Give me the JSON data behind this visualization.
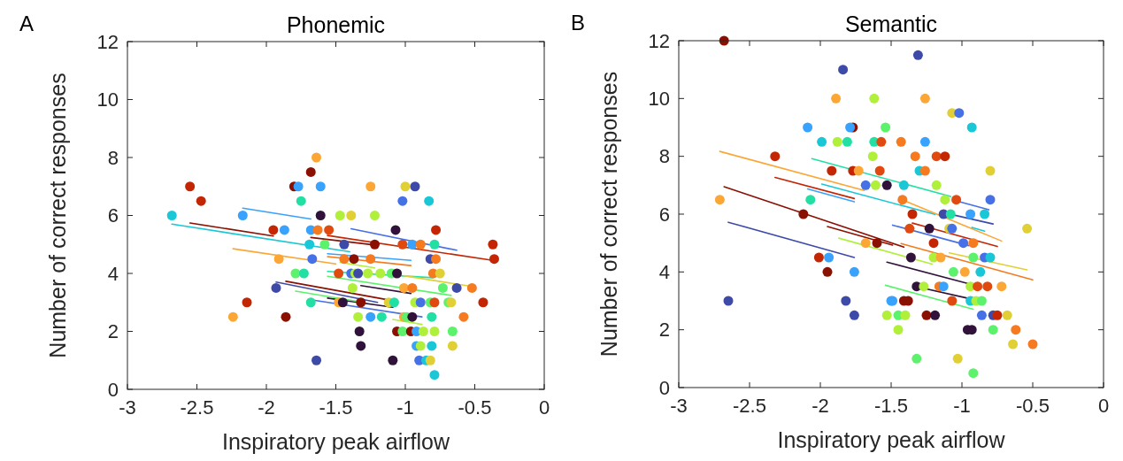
{
  "chart_data": [
    {
      "type": "scatter",
      "title": "Phonemic",
      "xlabel": "Inspiratory peak airflow",
      "ylabel": "Number of correct responses",
      "annotations": [
        "A"
      ],
      "xlim": [
        -3,
        0
      ],
      "xticks": [
        -3,
        -2.5,
        -2,
        -1.5,
        -1,
        -0.5,
        0
      ],
      "ylim": [
        0,
        12
      ],
      "yticks": [
        0,
        2,
        4,
        6,
        8,
        10,
        12
      ],
      "series": [
        {
          "marker": "circle",
          "x": [
            -1.64,
            -1.68,
            -2.55,
            -1.8,
            -1.77,
            -1.61,
            -2.47,
            -1.75,
            -2.68,
            -2.17,
            -1.61,
            -1.95,
            -1.87,
            -1.68,
            -1.63,
            -1.55,
            -1.69,
            -1.58,
            -1.91,
            -1.67,
            -1.79,
            -1.73,
            -1.93,
            -2.14,
            -1.68,
            -2.24,
            -1.86,
            -1.64,
            -1.25,
            -1.0,
            -0.93,
            -1.02,
            -0.83,
            -1.47,
            -1.39,
            -1.22,
            -1.07,
            -0.78,
            -1.44,
            -1.22,
            -1.02,
            -0.95,
            -0.89,
            -0.79,
            -0.37,
            -1.44,
            -1.37,
            -1.25,
            -0.82,
            -0.78,
            -0.36,
            -1.48,
            -1.39,
            -1.36,
            -1.34,
            -1.27,
            -1.18,
            -1.1,
            -1.06,
            -0.8,
            -0.75,
            -1.38,
            -1.01,
            -0.95,
            -0.73,
            -0.63,
            -0.52,
            -1.48,
            -1.45,
            -1.32,
            -1.12,
            -1.08,
            -0.93,
            -0.89,
            -0.82,
            -0.79,
            -0.69,
            -0.67,
            -0.44,
            -1.34,
            -1.25,
            -1.17,
            -1.01,
            -0.99,
            -0.95,
            -0.81,
            -0.58,
            -1.33,
            -1.06,
            -1.02,
            -0.96,
            -0.92,
            -0.87,
            -0.79,
            -0.66,
            -1.32,
            -0.92,
            -0.89,
            -0.81,
            -0.66,
            -1.09,
            -0.9,
            -0.85,
            -0.82,
            -0.79
          ],
          "values": [
            8,
            7.5,
            7,
            7,
            7,
            7,
            6.5,
            6.5,
            6,
            6,
            6,
            5.5,
            5.5,
            5.5,
            5.5,
            5.5,
            5,
            5,
            4.5,
            4.5,
            4,
            4,
            3.5,
            3,
            3,
            2.5,
            2.5,
            1,
            7,
            7,
            7,
            6.5,
            6.5,
            6,
            6,
            6,
            5.5,
            5.5,
            5,
            5,
            5,
            5,
            5,
            5,
            5,
            4.5,
            4.5,
            4.5,
            4.5,
            4.5,
            4.5,
            4,
            4,
            4,
            4,
            4,
            4,
            4,
            4,
            4,
            4,
            3.5,
            3.5,
            3.5,
            3.5,
            3.5,
            3.5,
            3,
            3,
            3,
            3,
            3,
            3,
            3,
            3,
            3,
            3,
            3,
            3,
            2.5,
            2.5,
            2.5,
            2.5,
            2.5,
            2.5,
            2.5,
            2.5,
            2,
            2,
            2,
            2,
            2,
            2,
            2,
            2,
            1.5,
            1.5,
            1.5,
            1.5,
            1.5,
            1,
            1,
            1,
            1,
            0.5
          ],
          "colors": [
            "#fca635",
            "#8a1002",
            "#c42503",
            "#8a1002",
            "#39a2fc",
            "#39a2fc",
            "#c42503",
            "#22e0a4",
            "#1ac7d6",
            "#39a2fc",
            "#30123b",
            "#c42503",
            "#39a2fc",
            "#39a2fc",
            "#f57a20",
            "#e04a10",
            "#1ac7d6",
            "#5cf26c",
            "#fca635",
            "#4570e6",
            "#5cf26c",
            "#22e0a4",
            "#3e4aa8",
            "#c42503",
            "#22e0a4",
            "#fca635",
            "#8a1002",
            "#3e4aa8",
            "#fca635",
            "#e0d035",
            "#3e4aa8",
            "#4570e6",
            "#1ac7d6",
            "#b0f03a",
            "#e0d035",
            "#b0f03a",
            "#30123b",
            "#c42503",
            "#3e4aa8",
            "#8a1002",
            "#e04a10",
            "#39a2fc",
            "#f57a20",
            "#22e0a4",
            "#c42503",
            "#f57a20",
            "#8a1002",
            "#f57a20",
            "#3e4aa8",
            "#f57a20",
            "#c42503",
            "#e04a10",
            "#4570e6",
            "#b0f03a",
            "#3e4aa8",
            "#b0f03a",
            "#b0f03a",
            "#5cf26c",
            "#30123b",
            "#f57a20",
            "#e0d035",
            "#b0f03a",
            "#fca635",
            "#f57a20",
            "#5cf26c",
            "#3e4aa8",
            "#f57a20",
            "#fca635",
            "#30123b",
            "#8a1002",
            "#e0d035",
            "#22e0a4",
            "#b0f03a",
            "#4570e6",
            "#5cf26c",
            "#e04a10",
            "#5cf26c",
            "#e0d035",
            "#c42503",
            "#b0f03a",
            "#39a2fc",
            "#22e0a4",
            "#fca635",
            "#5cf26c",
            "#30123b",
            "#22e0a4",
            "#f57a20",
            "#30123b",
            "#8a1002",
            "#5cf26c",
            "#8a1002",
            "#39a2fc",
            "#b0f03a",
            "#b0f03a",
            "#5cf26c",
            "#30123b",
            "#39a2fc",
            "#b0f03a",
            "#1ac7d6",
            "#e0d035",
            "#30123b",
            "#4570e6",
            "#1ac7d6",
            "#e0d035",
            "#1ac7d6"
          ]
        },
        {
          "type": "line",
          "color": "#1ac7d6",
          "x": [
            -2.68,
            -1.4
          ],
          "values": [
            5.7,
            4.75
          ]
        },
        {
          "type": "line",
          "color": "#8a1002",
          "x": [
            -2.55,
            -1.95
          ],
          "values": [
            5.74,
            5.29
          ]
        },
        {
          "type": "line",
          "color": "#39a2fc",
          "x": [
            -2.17,
            -1.68
          ],
          "values": [
            6.25,
            5.88
          ]
        },
        {
          "type": "line",
          "color": "#fca635",
          "x": [
            -2.24,
            -1.5
          ],
          "values": [
            4.85,
            4.33
          ]
        },
        {
          "type": "line",
          "color": "#c42503",
          "x": [
            -1.56,
            -0.37
          ],
          "values": [
            5.31,
            4.45
          ]
        },
        {
          "type": "line",
          "color": "#4570e6",
          "x": [
            -1.39,
            -0.63
          ],
          "values": [
            5.54,
            4.8
          ]
        },
        {
          "type": "line",
          "color": "#8a1002",
          "x": [
            -1.68,
            -1.22
          ],
          "values": [
            5.24,
            4.98
          ]
        },
        {
          "type": "line",
          "color": "#39a2fc",
          "x": [
            -1.56,
            -0.96
          ],
          "values": [
            4.68,
            4.45
          ]
        },
        {
          "type": "line",
          "color": "#f57a20",
          "x": [
            -1.56,
            -0.96
          ],
          "values": [
            4.58,
            4.27
          ]
        },
        {
          "type": "line",
          "color": "#b0f03a",
          "x": [
            -1.47,
            -1.22
          ],
          "values": [
            4.38,
            4.19
          ]
        },
        {
          "type": "line",
          "color": "#22e0a4",
          "x": [
            -1.56,
            -0.8
          ],
          "values": [
            4.07,
            3.85
          ]
        },
        {
          "type": "line",
          "color": "#e0d035",
          "x": [
            -1.01,
            -0.51
          ],
          "values": [
            3.92,
            3.54
          ]
        },
        {
          "type": "line",
          "color": "#5cf26c",
          "x": [
            -1.56,
            -0.67
          ],
          "values": [
            3.9,
            3.24
          ]
        },
        {
          "type": "line",
          "color": "#30123b",
          "x": [
            -1.32,
            -0.96
          ],
          "values": [
            3.58,
            3.31
          ]
        },
        {
          "type": "line",
          "color": "#3e4aa8",
          "x": [
            -1.93,
            -1.2
          ],
          "values": [
            3.7,
            3.0
          ]
        },
        {
          "type": "line",
          "color": "#30123b",
          "x": [
            -1.56,
            -1.09
          ],
          "values": [
            3.15,
            2.83
          ]
        },
        {
          "type": "line",
          "color": "#b0f03a",
          "x": [
            -1.09,
            -0.88
          ],
          "values": [
            2.41,
            2.24
          ]
        },
        {
          "type": "line",
          "color": "#4570e6",
          "x": [
            -1.65,
            -0.88
          ],
          "values": [
            3.07,
            2.5
          ]
        },
        {
          "type": "line",
          "color": "#8a1002",
          "x": [
            -1.86,
            -1.08
          ],
          "values": [
            3.73,
            3.05
          ]
        },
        {
          "type": "line",
          "color": "#5cf26c",
          "x": [
            -1.79,
            -1.3
          ],
          "values": [
            3.39,
            3.0
          ]
        }
      ]
    },
    {
      "type": "scatter",
      "title": "Semantic",
      "xlabel": "Inspiratory peak airflow",
      "ylabel": "Number of correct responses",
      "annotations": [
        "B"
      ],
      "xlim": [
        -3,
        0
      ],
      "xticks": [
        -3,
        -2.5,
        -2,
        -1.5,
        -1,
        -0.5,
        0
      ],
      "ylim": [
        0,
        12
      ],
      "yticks": [
        0,
        2,
        4,
        6,
        8,
        10,
        12
      ],
      "series": [
        {
          "marker": "circle",
          "x": [
            -2.68,
            -1.84,
            -1.89,
            -1.62,
            -2.09,
            -1.77,
            -1.79,
            -1.54,
            -1.99,
            -1.88,
            -1.81,
            -1.62,
            -1.57,
            -2.32,
            -1.63,
            -1.92,
            -1.77,
            -1.73,
            -1.58,
            -1.68,
            -1.61,
            -1.53,
            -2.71,
            -2.07,
            -2.12,
            -1.68,
            -1.6,
            -2.01,
            -1.94,
            -1.95,
            -1.76,
            -2.65,
            -1.82,
            -1.5,
            -1.76,
            -1.53,
            -1.31,
            -1.26,
            -1.07,
            -1.02,
            -0.93,
            -1.43,
            -1.26,
            -1.33,
            -1.18,
            -1.12,
            -1.3,
            -1.26,
            -0.8,
            -1.41,
            -1.18,
            -1.42,
            -1.12,
            -1.04,
            -0.8,
            -1.35,
            -1.13,
            -1.08,
            -0.94,
            -0.84,
            -1.37,
            -1.23,
            -1.09,
            -1.07,
            -0.54,
            -1.2,
            -0.99,
            -0.92,
            -1.36,
            -1.2,
            -1.15,
            -0.92,
            -0.84,
            -0.8,
            -1.06,
            -0.98,
            -0.87,
            -1.32,
            -1.27,
            -1.16,
            -1.13,
            -0.94,
            -0.89,
            -0.82,
            -0.72,
            -1.49,
            -1.41,
            -1.38,
            -1.07,
            -0.94,
            -0.9,
            -0.86,
            -1.45,
            -1.4,
            -1.25,
            -1.19,
            -0.86,
            -0.78,
            -0.75,
            -0.68,
            -1.45,
            -0.96,
            -0.93,
            -0.78,
            -0.62,
            -0.64,
            -0.5,
            -1.32,
            -1.03,
            -0.92
          ],
          "values": [
            12,
            11,
            10,
            10,
            9,
            9,
            9,
            9,
            8.5,
            8.5,
            8.5,
            8.5,
            8.5,
            8,
            8,
            7.5,
            7.5,
            7.5,
            7.5,
            7,
            7,
            7,
            6.5,
            6.5,
            6,
            5,
            5,
            4.5,
            4.5,
            4,
            4,
            3,
            3,
            3,
            2.5,
            2.5,
            11.5,
            10,
            9.5,
            9.5,
            9,
            8.5,
            8.5,
            8,
            8,
            8,
            7.5,
            7.5,
            7.5,
            7,
            7,
            6.5,
            6.5,
            6.5,
            6.5,
            6,
            6,
            6,
            6,
            6,
            5.5,
            5.5,
            5.5,
            5.5,
            5.5,
            5,
            5,
            5,
            4.5,
            4.5,
            4.5,
            4.5,
            4.5,
            4.5,
            4,
            4,
            4,
            3.5,
            3.5,
            3.5,
            3.5,
            3.5,
            3.5,
            3.5,
            3.5,
            3,
            3,
            3,
            3,
            3,
            3,
            3,
            2.5,
            2.5,
            2.5,
            2.5,
            2.5,
            2.5,
            2.5,
            2.5,
            2,
            2,
            2,
            2,
            2,
            1.5,
            1.5,
            1,
            1,
            0.5
          ],
          "colors": [
            "#8a1002",
            "#3e4aa8",
            "#fca635",
            "#b0f03a",
            "#39a2fc",
            "#8a1002",
            "#39a2fc",
            "#5cf26c",
            "#1ac7d6",
            "#b0f03a",
            "#22e0a4",
            "#22e0a4",
            "#e04a10",
            "#c42503",
            "#b0f03a",
            "#c42503",
            "#c42503",
            "#fca635",
            "#e04a10",
            "#4570e6",
            "#b0f03a",
            "#30123b",
            "#fca635",
            "#22e0a4",
            "#8a1002",
            "#fca635",
            "#8a1002",
            "#c42503",
            "#39a2fc",
            "#8a1002",
            "#39a2fc",
            "#3e4aa8",
            "#3e4aa8",
            "#39a2fc",
            "#3e4aa8",
            "#b0f03a",
            "#3e4aa8",
            "#fca635",
            "#e0d035",
            "#4570e6",
            "#1ac7d6",
            "#f57a20",
            "#39a2fc",
            "#f57a20",
            "#e04a10",
            "#c42503",
            "#1ac7d6",
            "#f57a20",
            "#e0d035",
            "#1ac7d6",
            "#b0f03a",
            "#f57a20",
            "#b0f03a",
            "#e04a10",
            "#4570e6",
            "#c42503",
            "#3e4aa8",
            "#22e0a4",
            "#39a2fc",
            "#1ac7d6",
            "#e04a10",
            "#30123b",
            "#e0d035",
            "#4570e6",
            "#e0d035",
            "#c42503",
            "#4570e6",
            "#f57a20",
            "#30123b",
            "#b0f03a",
            "#fca635",
            "#5cf26c",
            "#4570e6",
            "#1ac7d6",
            "#5cf26c",
            "#fca635",
            "#1ac7d6",
            "#30123b",
            "#b0f03a",
            "#f57a20",
            "#39a2fc",
            "#b0f03a",
            "#e04a10",
            "#e04a10",
            "#fca635",
            "#39a2fc",
            "#8a1002",
            "#8a1002",
            "#e04a10",
            "#1ac7d6",
            "#b0f03a",
            "#5cf26c",
            "#5cf26c",
            "#b0f03a",
            "#8a1002",
            "#30123b",
            "#4570e6",
            "#3e4aa8",
            "#c42503",
            "#e0d035",
            "#b0f03a",
            "#30123b",
            "#30123b",
            "#5cf26c",
            "#f57a20",
            "#e0d035",
            "#f57a20",
            "#5cf26c",
            "#e0d035",
            "#5cf26c"
          ]
        },
        {
          "type": "line",
          "color": "#fca635",
          "x": [
            -2.71,
            -1.69
          ],
          "values": [
            8.17,
            6.82
          ]
        },
        {
          "type": "line",
          "color": "#22e0a4",
          "x": [
            -2.06,
            -1.08
          ],
          "values": [
            7.92,
            6.61
          ]
        },
        {
          "type": "line",
          "color": "#c42503",
          "x": [
            -2.32,
            -1.76
          ],
          "values": [
            7.27,
            6.54
          ]
        },
        {
          "type": "line",
          "color": "#39a2fc",
          "x": [
            -2.09,
            -1.76
          ],
          "values": [
            6.87,
            6.43
          ]
        },
        {
          "type": "line",
          "color": "#1ac7d6",
          "x": [
            -1.99,
            -1.19
          ],
          "values": [
            7.04,
            5.99
          ]
        },
        {
          "type": "line",
          "color": "#8a1002",
          "x": [
            -2.68,
            -1.41
          ],
          "values": [
            6.95,
            4.86
          ]
        },
        {
          "type": "line",
          "color": "#3e4aa8",
          "x": [
            -2.65,
            -1.76
          ],
          "values": [
            5.72,
            4.5
          ]
        },
        {
          "type": "line",
          "color": "#8a1002",
          "x": [
            -1.95,
            -1.49
          ],
          "values": [
            5.57,
            4.93
          ]
        },
        {
          "type": "line",
          "color": "#c42503",
          "x": [
            -1.35,
            -0.75
          ],
          "values": [
            5.69,
            4.88
          ]
        },
        {
          "type": "line",
          "color": "#b0f03a",
          "x": [
            -1.87,
            -1.21
          ],
          "values": [
            5.17,
            4.27
          ]
        },
        {
          "type": "line",
          "color": "#fca635",
          "x": [
            -1.43,
            -0.72
          ],
          "values": [
            6.51,
            5.07
          ]
        },
        {
          "type": "line",
          "color": "#f57a20",
          "x": [
            -1.43,
            -0.5
          ],
          "values": [
            4.98,
            3.73
          ]
        },
        {
          "type": "line",
          "color": "#e0d035",
          "x": [
            -1.09,
            -0.54
          ],
          "values": [
            4.66,
            4.07
          ]
        },
        {
          "type": "line",
          "color": "#4570e6",
          "x": [
            -1.49,
            -0.95
          ],
          "values": [
            5.62,
            4.91
          ]
        },
        {
          "type": "line",
          "color": "#3e4aa8",
          "x": [
            -1.13,
            -0.78
          ],
          "values": [
            6.05,
            5.66
          ]
        },
        {
          "type": "line",
          "color": "#4570e6",
          "x": [
            -1.04,
            -0.81
          ],
          "values": [
            6.46,
            6.15
          ]
        },
        {
          "type": "line",
          "color": "#1ac7d6",
          "x": [
            -0.93,
            -0.84
          ],
          "values": [
            5.54,
            5.41
          ]
        },
        {
          "type": "line",
          "color": "#30123b",
          "x": [
            -1.53,
            -0.95
          ],
          "values": [
            4.34,
            3.59
          ]
        },
        {
          "type": "line",
          "color": "#30123b",
          "x": [
            -1.32,
            -0.95
          ],
          "values": [
            3.49,
            3.08
          ]
        },
        {
          "type": "line",
          "color": "#5cf26c",
          "x": [
            -1.54,
            -0.92
          ],
          "values": [
            3.54,
            2.71
          ]
        }
      ]
    }
  ]
}
